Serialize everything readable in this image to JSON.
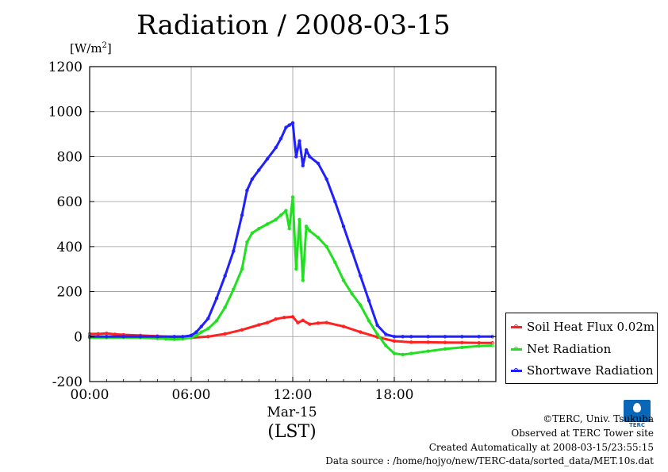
{
  "title": "Radiation / 2008-03-15",
  "y_unit": "[W/m",
  "y_unit_sup": "2",
  "y_unit_close": "]",
  "x_sublabel": "Mar-15",
  "x_unit": "(LST)",
  "credits": {
    "copyright": "©TERC, Univ. Tsukuba",
    "observed": "Observed at TERC Tower site",
    "created": "Created Automatically at 2008-03-15/23:55:15",
    "source": "Data source : /home/hojyo/new/TERC-data/sorted_data/MET.10s.dat"
  },
  "logo": {
    "text": "TERC",
    "color": "#0a67b8"
  },
  "chart_data": {
    "type": "line",
    "title": "Radiation / 2008-03-15",
    "ylabel": "[W/m2]",
    "xlabel": "(LST)",
    "x_units": "hours LST",
    "xlim": [
      0,
      24
    ],
    "ylim": [
      -200,
      1200
    ],
    "xticks": [
      0,
      6,
      12,
      18
    ],
    "xtick_labels": [
      "00:00",
      "06:00",
      "12:00",
      "18:00"
    ],
    "yticks": [
      -200,
      0,
      200,
      400,
      600,
      800,
      1000,
      1200
    ],
    "ytick_labels": [
      "-200",
      "0",
      "200",
      "400",
      "600",
      "800",
      "1000",
      "1200"
    ],
    "grid": true,
    "legend_position": "right-bottom outside",
    "series": [
      {
        "name": "Soil Heat Flux 0.02m",
        "color": "#ff2020",
        "x": [
          0,
          0.5,
          1,
          1.5,
          2,
          3,
          4,
          5,
          5.5,
          6,
          7,
          8,
          9,
          10,
          10.5,
          11,
          11.5,
          12,
          12.3,
          12.6,
          13,
          13.5,
          14,
          15,
          16,
          17,
          18,
          19,
          20,
          21,
          22,
          23,
          23.8
        ],
        "y": [
          12,
          12,
          14,
          10,
          8,
          5,
          2,
          -2,
          -6,
          -5,
          0,
          12,
          30,
          52,
          62,
          78,
          85,
          88,
          62,
          72,
          55,
          60,
          62,
          45,
          20,
          -2,
          -20,
          -25,
          -25,
          -26,
          -27,
          -28,
          -28
        ]
      },
      {
        "name": "Net Radiation",
        "color": "#20e020",
        "x": [
          0,
          1,
          2,
          3,
          4,
          4.5,
          5,
          5.5,
          6,
          6.3,
          6.6,
          7,
          7.5,
          8,
          8.5,
          9,
          9.3,
          9.6,
          10,
          10.5,
          11,
          11.3,
          11.6,
          11.8,
          12,
          12.2,
          12.4,
          12.6,
          12.8,
          13,
          13.5,
          14,
          14.5,
          15,
          15.5,
          16,
          16.5,
          17,
          17.5,
          18,
          18.5,
          19,
          20,
          21,
          22,
          23,
          23.8
        ],
        "y": [
          -5,
          -5,
          -4,
          -5,
          -8,
          -10,
          -12,
          -10,
          -5,
          5,
          20,
          35,
          70,
          130,
          210,
          300,
          420,
          460,
          480,
          500,
          520,
          540,
          560,
          480,
          620,
          300,
          520,
          250,
          490,
          470,
          440,
          400,
          330,
          250,
          190,
          140,
          70,
          10,
          -40,
          -75,
          -80,
          -75,
          -65,
          -55,
          -48,
          -42,
          -40
        ]
      },
      {
        "name": "Shortwave Radiation",
        "color": "#2020ff",
        "x": [
          0,
          1,
          2,
          3,
          4,
          5,
          5.5,
          6,
          6.3,
          6.6,
          7,
          7.5,
          8,
          8.5,
          9,
          9.3,
          9.6,
          10,
          10.5,
          11,
          11.3,
          11.6,
          11.8,
          12,
          12.2,
          12.4,
          12.6,
          12.8,
          13,
          13.5,
          14,
          14.5,
          15,
          15.5,
          16,
          16.5,
          17,
          17.5,
          18,
          18.5,
          19,
          20,
          21,
          22,
          23,
          23.8
        ],
        "y": [
          0,
          0,
          0,
          0,
          0,
          0,
          0,
          5,
          20,
          45,
          80,
          170,
          270,
          380,
          540,
          650,
          700,
          740,
          790,
          840,
          880,
          930,
          940,
          950,
          800,
          870,
          760,
          830,
          800,
          770,
          700,
          600,
          490,
          380,
          270,
          160,
          50,
          10,
          0,
          0,
          0,
          0,
          0,
          0,
          0,
          0
        ]
      }
    ]
  }
}
